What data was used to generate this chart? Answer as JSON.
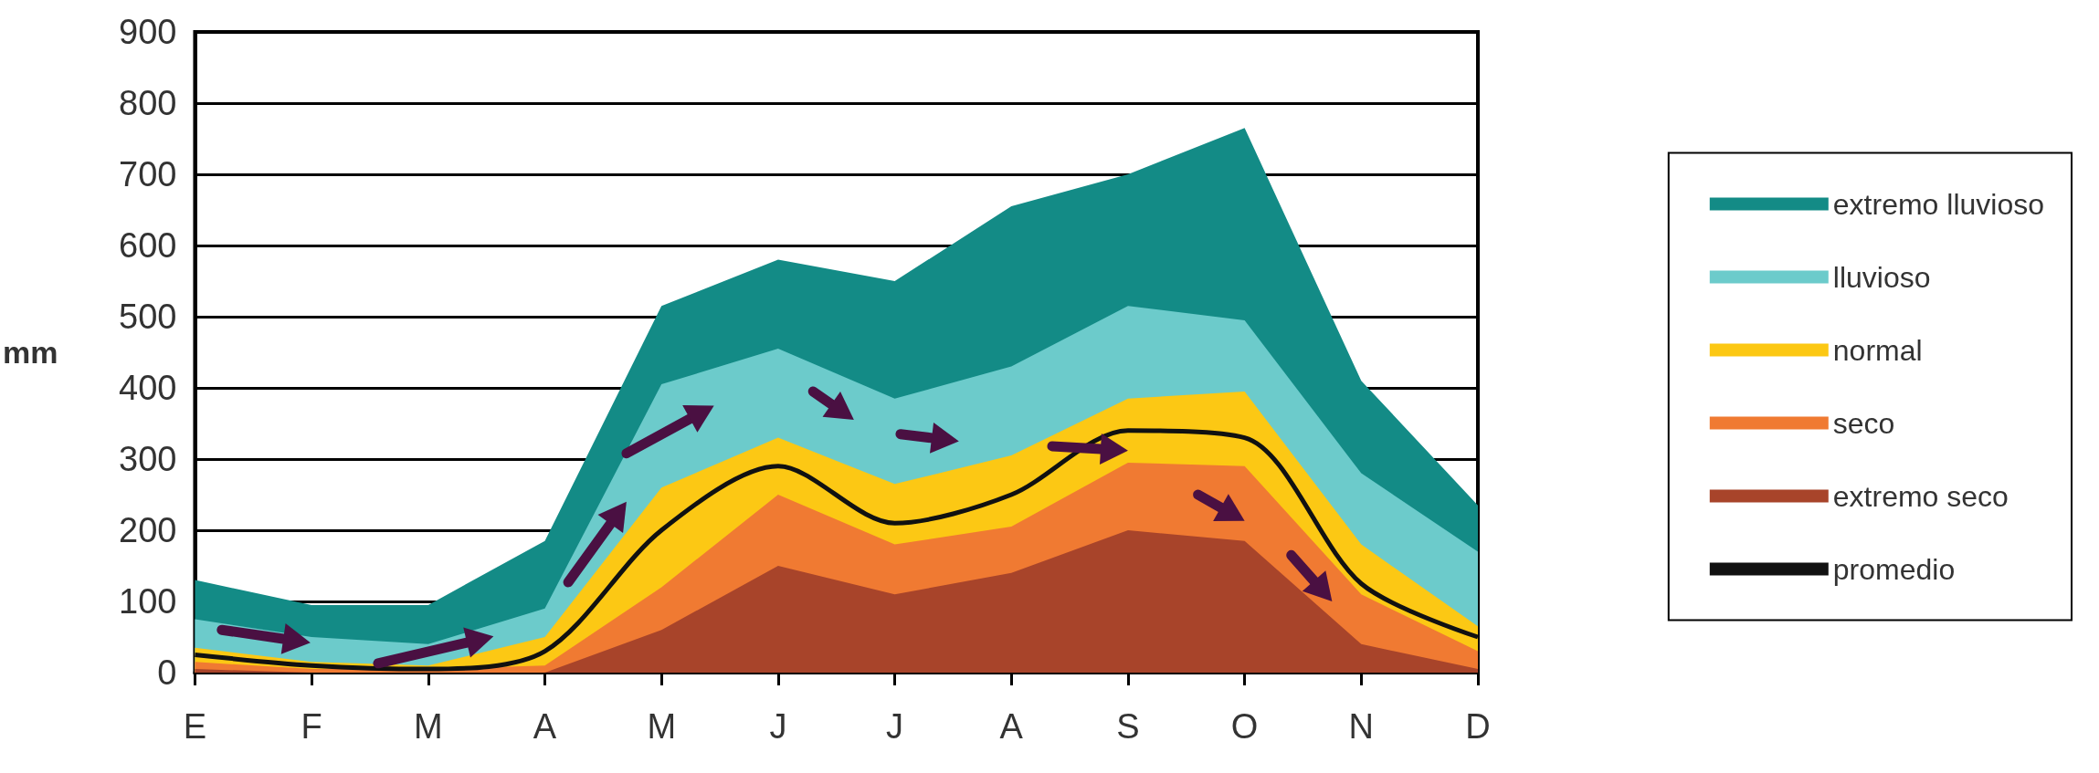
{
  "chart_data": {
    "type": "area",
    "ylabel": "mm",
    "categories": [
      "E",
      "F",
      "M",
      "A",
      "M",
      "J",
      "J",
      "A",
      "S",
      "O",
      "N",
      "D"
    ],
    "series": [
      {
        "name": "extremo lluvioso",
        "color": "#138b86",
        "values": [
          130,
          95,
          95,
          185,
          515,
          580,
          550,
          655,
          700,
          765,
          410,
          235
        ]
      },
      {
        "name": "lluvioso",
        "color": "#6ccbcb",
        "values": [
          75,
          50,
          40,
          90,
          405,
          455,
          385,
          430,
          515,
          495,
          280,
          170
        ]
      },
      {
        "name": "normal",
        "color": "#fcc814",
        "values": [
          35,
          15,
          10,
          50,
          260,
          330,
          265,
          305,
          385,
          395,
          180,
          65
        ]
      },
      {
        "name": "seco",
        "color": "#f07a32",
        "values": [
          15,
          5,
          5,
          10,
          120,
          250,
          180,
          205,
          295,
          290,
          110,
          30
        ]
      },
      {
        "name": "extremo seco",
        "color": "#a8442a",
        "values": [
          5,
          0,
          0,
          0,
          60,
          150,
          110,
          140,
          200,
          185,
          40,
          5
        ]
      },
      {
        "name": "promedio",
        "type": "line",
        "color": "#111111",
        "values": [
          25,
          10,
          5,
          30,
          200,
          290,
          210,
          250,
          340,
          330,
          125,
          50
        ]
      }
    ],
    "ylim": [
      0,
      900
    ],
    "yticks": [
      0,
      100,
      200,
      300,
      400,
      500,
      600,
      700,
      800,
      900
    ],
    "grid": "y",
    "legend": "right"
  }
}
